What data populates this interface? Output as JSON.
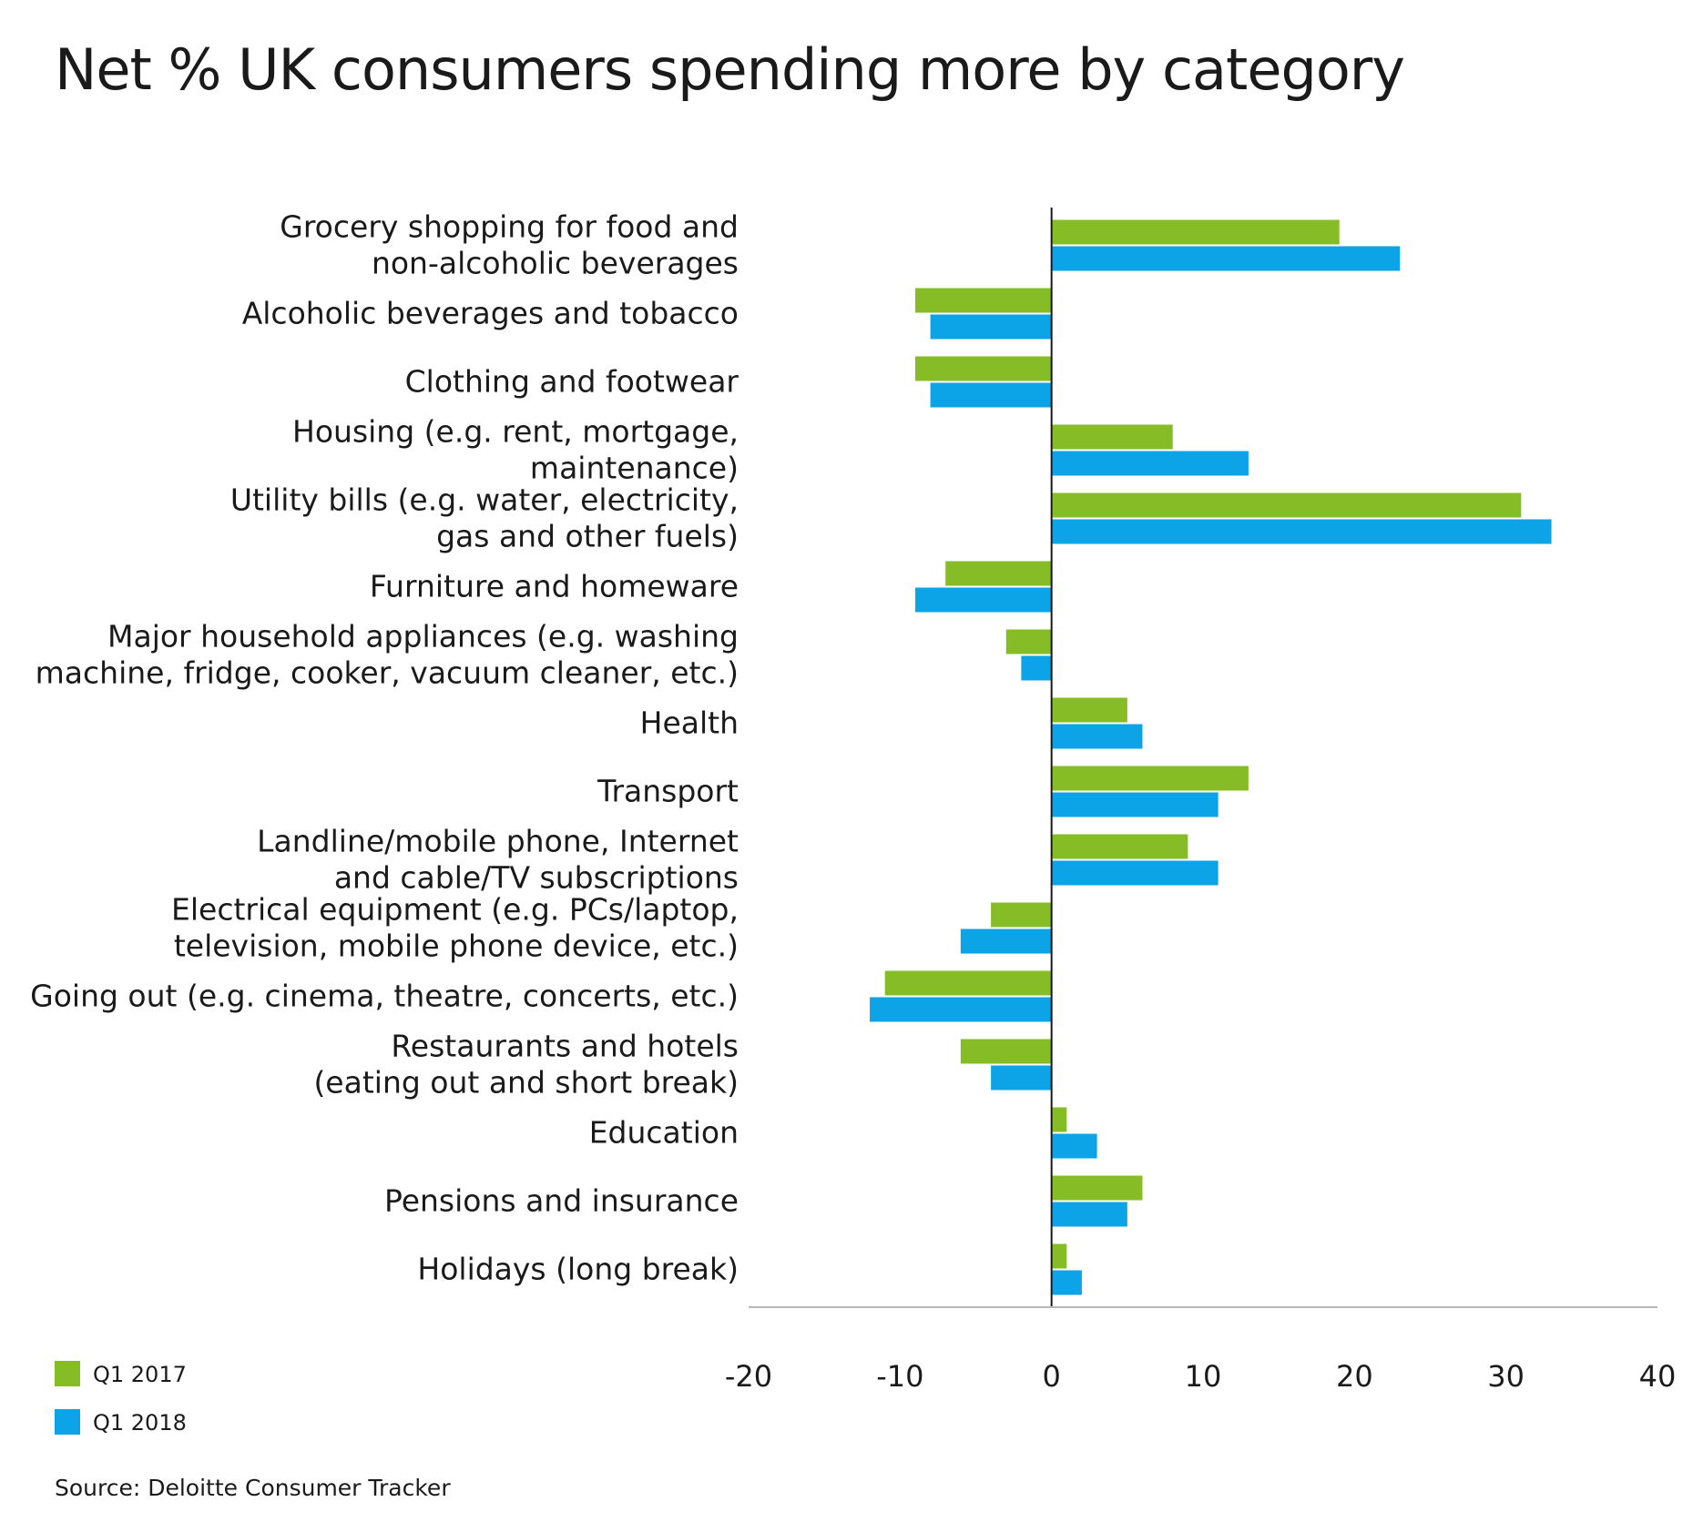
{
  "chart_data": {
    "type": "bar",
    "orientation": "horizontal",
    "title": "Net % UK consumers spending more by category",
    "source": "Source: Deloitte Consumer Tracker",
    "xlim": [
      -20,
      40
    ],
    "xticks": [
      -20,
      -10,
      0,
      10,
      20,
      30,
      40
    ],
    "legend_position": "bottom-left",
    "categories": [
      [
        "Grocery shopping for food and",
        "non-alcoholic beverages"
      ],
      [
        "Alcoholic beverages and tobacco"
      ],
      [
        "Clothing and footwear"
      ],
      [
        "Housing (e.g. rent, mortgage,",
        "maintenance)"
      ],
      [
        "Utility bills (e.g. water, electricity,",
        "gas and other fuels)"
      ],
      [
        "Furniture and homeware"
      ],
      [
        "Major household appliances (e.g. washing",
        "machine, fridge, cooker, vacuum cleaner, etc.)"
      ],
      [
        "Health"
      ],
      [
        "Transport"
      ],
      [
        "Landline/mobile phone, Internet",
        "and cable/TV subscriptions"
      ],
      [
        "Electrical equipment (e.g. PCs/laptop,",
        "television, mobile phone device, etc.)"
      ],
      [
        "Going out (e.g. cinema, theatre, concerts, etc.)"
      ],
      [
        "Restaurants and hotels",
        "(eating out and short break)"
      ],
      [
        "Education"
      ],
      [
        "Pensions and insurance"
      ],
      [
        "Holidays (long break)"
      ]
    ],
    "series": [
      {
        "name": "Q1 2017",
        "color": "#86bc25",
        "values": [
          19,
          -9,
          -9,
          8,
          31,
          -7,
          -3,
          5,
          13,
          9,
          -4,
          -11,
          -6,
          1,
          6,
          1
        ]
      },
      {
        "name": "Q1 2018",
        "color": "#0ca4e6",
        "values": [
          23,
          -8,
          -8,
          13,
          33,
          -9,
          -2,
          6,
          11,
          11,
          -6,
          -12,
          -4,
          3,
          5,
          2
        ]
      }
    ]
  }
}
